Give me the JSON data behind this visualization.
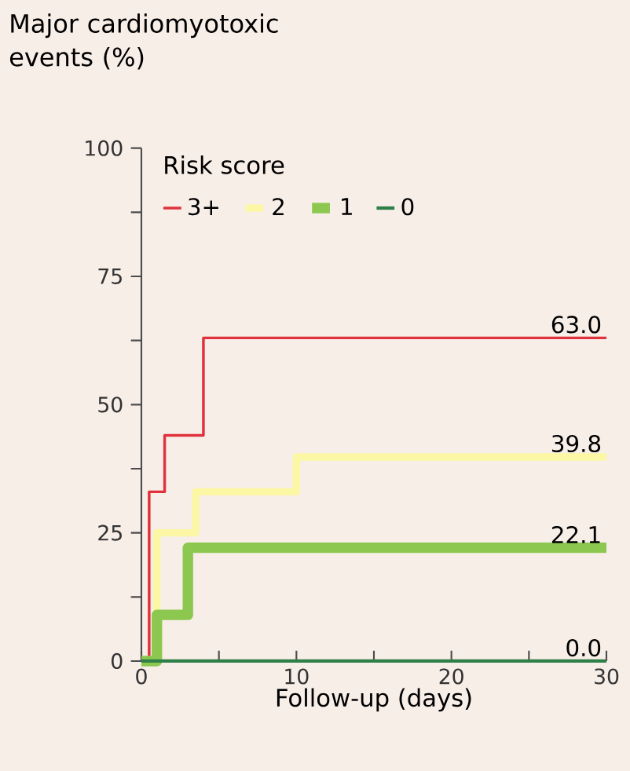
{
  "chart_data": {
    "type": "step",
    "title": "Major cardiomyotoxic events (%)",
    "xlabel": "Follow-up (days)",
    "legend_title": "Risk score",
    "legend": "top",
    "xlim": [
      0,
      30
    ],
    "ylim": [
      0,
      100
    ],
    "xticks": [
      0,
      {
        "value": 5,
        "label": null
      },
      10,
      {
        "value": 15,
        "label": null
      },
      20,
      {
        "value": 25,
        "label": null
      },
      30
    ],
    "yticks": [
      0,
      {
        "value": 12.5,
        "label": null
      },
      25,
      {
        "value": 37.5,
        "label": null
      },
      50,
      {
        "value": 62.5,
        "label": null
      },
      75,
      {
        "value": 87.5,
        "label": null
      },
      100
    ],
    "series": [
      {
        "name": "3+",
        "color": "#e0323c",
        "x": [
          0,
          0.5,
          1.5,
          4,
          30
        ],
        "values": [
          0,
          33,
          44,
          63.0,
          63.0
        ]
      },
      {
        "name": "2",
        "color": "#fbf7a4",
        "x": [
          0,
          1,
          3.5,
          10,
          30
        ],
        "values": [
          0,
          25,
          33,
          39.8,
          39.8
        ]
      },
      {
        "name": "1",
        "color": "#8cc850",
        "x": [
          0,
          1,
          3,
          30
        ],
        "values": [
          0,
          9,
          22.1,
          22.1
        ]
      },
      {
        "name": "0",
        "color": "#2e8048",
        "x": [
          0,
          30
        ],
        "values": [
          0.0,
          0.0
        ]
      }
    ],
    "annotations": [
      "63.0",
      "39.8",
      "22.1",
      "0.0"
    ]
  }
}
